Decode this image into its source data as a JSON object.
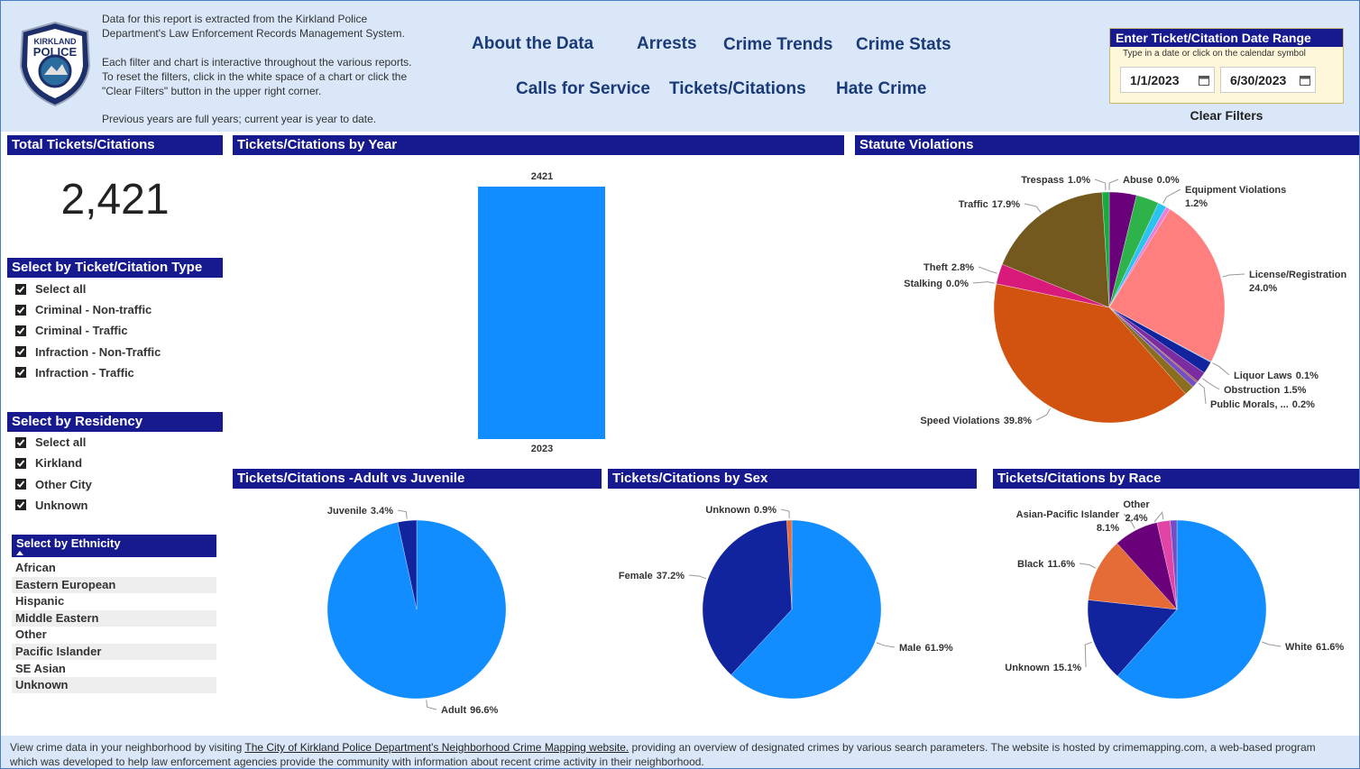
{
  "logo": {
    "top": "KIRKLAND",
    "middle": "POLICE"
  },
  "header": {
    "info": [
      "Data for this report is extracted from the Kirkland Police",
      "Department's Law Enforcement Records Management System.",
      "Each filter and chart is interactive throughout the various reports.",
      "To reset the filters, click in the white space of a chart or click the",
      "\"Clear Filters\" button in the upper right corner.",
      "Previous years are full years; current year is year to date."
    ],
    "nav": [
      "About the Data",
      "Arrests",
      "Crime Trends",
      "Crime Stats",
      "Calls for Service",
      "Tickets/Citations",
      "Hate Crime"
    ],
    "date_range": {
      "title": "Enter Ticket/Citation Date Range",
      "hint": "Type in a date or click on the calendar symbol",
      "start": "1/1/2023",
      "end": "6/30/2023"
    },
    "clear_filters": "Clear Filters"
  },
  "total": {
    "title": "Total Tickets/Citations",
    "value": "2,421"
  },
  "filters": [
    {
      "title": "Select by Ticket/Citation Type",
      "items": [
        "Select all",
        "Criminal - Non-traffic",
        "Criminal - Traffic",
        "Infraction - Non-Traffic",
        "Infraction - Traffic"
      ]
    },
    {
      "title": "Select by Residency",
      "items": [
        "Select all",
        "Kirkland",
        "Other City",
        "Unknown"
      ]
    },
    {
      "title": "Select by Ethnicity",
      "items": [
        "African",
        "Eastern European",
        "Hispanic",
        "Middle Eastern",
        "Other",
        "Pacific Islander",
        "SE Asian",
        "Unknown"
      ]
    }
  ],
  "chart_data": [
    {
      "type": "bar",
      "title": "Tickets/Citations by Year",
      "categories": [
        "2023"
      ],
      "values": [
        2421
      ],
      "color": "#118dff"
    },
    {
      "type": "pie",
      "title": "Statute Violations",
      "categories": [
        "Abuse",
        null,
        null,
        "Equipment Violations",
        null,
        "License/Registration",
        "Liquor Laws",
        null,
        "Obstruction",
        "Public Morals, ...",
        null,
        null,
        "Speed Violations",
        "Stalking",
        "Theft",
        "Traffic",
        "Trespass"
      ],
      "values": [
        0.0,
        3.8,
        3.2,
        1.2,
        0.6,
        24.0,
        0.1,
        1.7,
        1.5,
        0.2,
        0.8,
        1.4,
        39.8,
        0.0,
        2.8,
        17.9,
        1.0
      ],
      "value_labels": [
        "0.0%",
        null,
        null,
        "1.2%",
        null,
        "24.0%",
        "0.1%",
        null,
        "1.5%",
        "0.2%",
        null,
        null,
        "39.8%",
        "0.0%",
        "2.8%",
        "17.9%",
        "1.0%"
      ],
      "colors": [
        "#7b3fa0",
        "#6b007b",
        "#2db34a",
        "#2bc4f0",
        "#e87fdc",
        "#ff7f7f",
        "#1aa1e6",
        "#12239e",
        "#7b2ca0",
        "#a0522d",
        "#744ec2",
        "#8a6d1f",
        "#d2520f",
        "#e044a7",
        "#d81b7a",
        "#74591f",
        "#1aab40"
      ]
    },
    {
      "type": "pie",
      "title": "Tickets/Citations -Adult vs Juvenile",
      "categories": [
        "Adult",
        "Juvenile"
      ],
      "values": [
        96.6,
        3.4
      ],
      "value_labels": [
        "96.6%",
        "3.4%"
      ],
      "colors": [
        "#118dff",
        "#12239e"
      ]
    },
    {
      "type": "pie",
      "title": "Tickets/Citations by Sex",
      "categories": [
        "Male",
        "Female",
        "Unknown"
      ],
      "values": [
        61.9,
        37.2,
        0.9
      ],
      "value_labels": [
        "61.9%",
        "37.2%",
        "0.9%"
      ],
      "colors": [
        "#118dff",
        "#12239e",
        "#e66c37"
      ]
    },
    {
      "type": "pie",
      "title": "Tickets/Citations by Race",
      "categories": [
        "White",
        "Unknown",
        "Black",
        "Asian-Pacific Islander",
        "Other",
        null
      ],
      "values": [
        61.6,
        15.1,
        11.6,
        8.1,
        2.4,
        1.2
      ],
      "value_labels": [
        "61.6%",
        "15.1%",
        "11.6%",
        "8.1%",
        "2.4%",
        null
      ],
      "colors": [
        "#118dff",
        "#12239e",
        "#e66c37",
        "#6b007b",
        "#e044a7",
        "#744ec2"
      ]
    }
  ],
  "footer": {
    "before": "View crime data in your neighborhood by visiting ",
    "link": "The City of Kirkland Police Department's Neighborhood Crime Mapping website.",
    "after": " providing an overview of designated crimes by various search parameters. The website is hosted by crimemapping.com, a web-based program",
    "line2": "which was developed to help law enforcement agencies provide the community with information about recent crime activity in their neighborhood."
  }
}
